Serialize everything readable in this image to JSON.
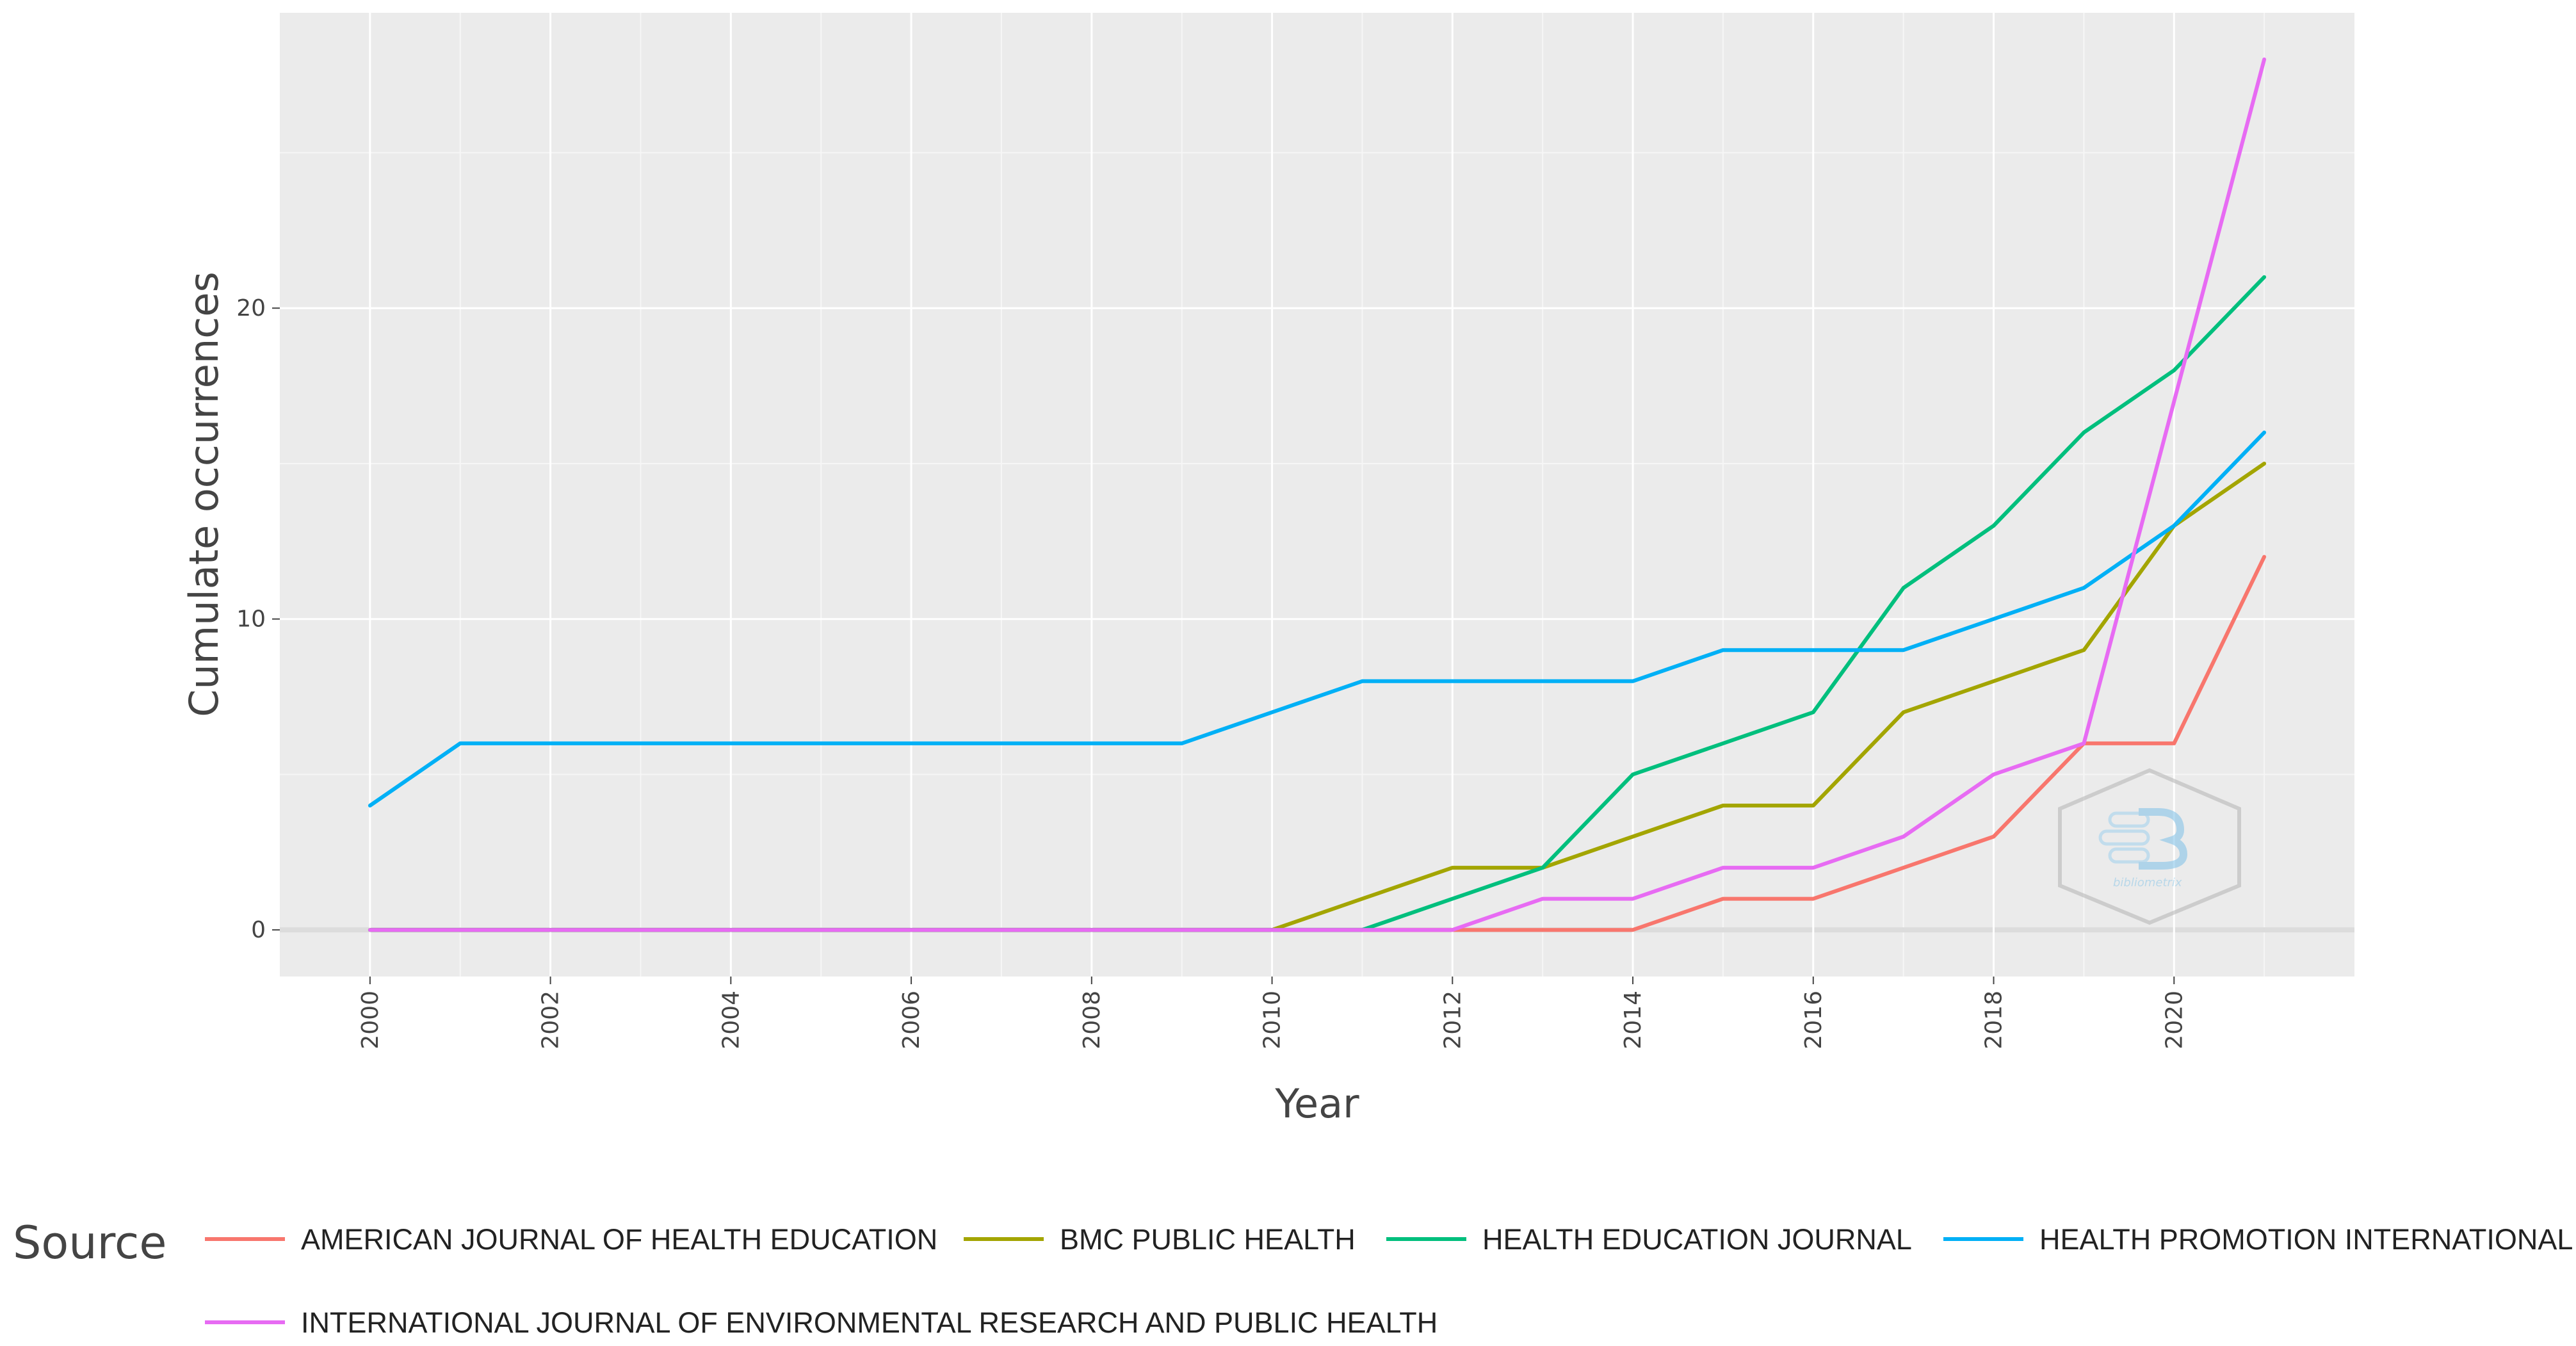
{
  "chart_data": {
    "type": "line",
    "title": "",
    "xlabel": "Year",
    "ylabel": "Cumulate occurrences",
    "x": [
      2000,
      2001,
      2002,
      2003,
      2004,
      2005,
      2006,
      2007,
      2008,
      2009,
      2010,
      2011,
      2012,
      2013,
      2014,
      2015,
      2016,
      2017,
      2018,
      2019,
      2020,
      2021
    ],
    "xticks": [
      "2000",
      "2002",
      "2004",
      "2006",
      "2008",
      "2010",
      "2012",
      "2014",
      "2016",
      "2018",
      "2020"
    ],
    "yticks": [
      "0",
      "10",
      "20"
    ],
    "xlim": [
      1999,
      2022
    ],
    "ylim": [
      -1.5,
      29.5
    ],
    "grid": true,
    "legend_title": "Source",
    "legend_position": "bottom",
    "series": [
      {
        "name": "AMERICAN JOURNAL OF HEALTH EDUCATION",
        "color": "#f8766d",
        "values": [
          0,
          0,
          0,
          0,
          0,
          0,
          0,
          0,
          0,
          0,
          0,
          0,
          0,
          0,
          0,
          1,
          1,
          2,
          3,
          6,
          6,
          12
        ]
      },
      {
        "name": "BMC PUBLIC HEALTH",
        "color": "#a3a500",
        "values": [
          0,
          0,
          0,
          0,
          0,
          0,
          0,
          0,
          0,
          0,
          0,
          1,
          2,
          2,
          3,
          4,
          4,
          7,
          8,
          9,
          13,
          15
        ]
      },
      {
        "name": "HEALTH EDUCATION JOURNAL",
        "color": "#00bf7d",
        "values": [
          0,
          0,
          0,
          0,
          0,
          0,
          0,
          0,
          0,
          0,
          0,
          0,
          1,
          2,
          5,
          6,
          7,
          11,
          13,
          16,
          18,
          21
        ]
      },
      {
        "name": "HEALTH PROMOTION INTERNATIONAL",
        "color": "#00b0f6",
        "values": [
          4,
          6,
          6,
          6,
          6,
          6,
          6,
          6,
          6,
          6,
          7,
          8,
          8,
          8,
          8,
          9,
          9,
          9,
          10,
          11,
          13,
          16
        ]
      },
      {
        "name": "INTERNATIONAL JOURNAL OF ENVIRONMENTAL RESEARCH AND PUBLIC HEALTH",
        "color": "#e76bf3",
        "values": [
          0,
          0,
          0,
          0,
          0,
          0,
          0,
          0,
          0,
          0,
          0,
          0,
          0,
          1,
          1,
          2,
          2,
          3,
          5,
          6,
          17,
          28
        ]
      }
    ]
  },
  "watermark": {
    "text": "bibliometrix"
  }
}
